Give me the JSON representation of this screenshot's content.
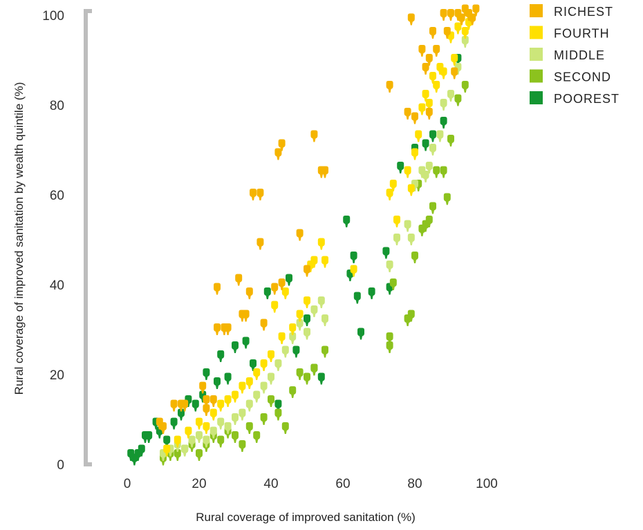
{
  "chart_data": {
    "type": "scatter",
    "title": "",
    "xlabel": "Rural coverage of improved sanitation (%)",
    "ylabel": "Rural coverage of improved sanitation by wealth quintile (%)",
    "xlim": [
      0,
      100
    ],
    "ylim": [
      0,
      100
    ],
    "xticks": [
      "0",
      "20",
      "40",
      "60",
      "80",
      "100"
    ],
    "yticks": [
      "0",
      "20",
      "40",
      "60",
      "80",
      "100"
    ],
    "legend_position": "top-right",
    "grid": false,
    "colors": {
      "richest": "#F5B400",
      "fourth": "#FFE000",
      "middle": "#CCE67A",
      "second": "#8CC21E",
      "poorest": "#149632"
    },
    "series": [
      {
        "name": "RICHEST",
        "key": "richest",
        "x": [
          9,
          10,
          13,
          15,
          16,
          21,
          22,
          22,
          24,
          25,
          25,
          27,
          28,
          31,
          32,
          33,
          34,
          35,
          37,
          37,
          38,
          41,
          42,
          43,
          43,
          48,
          50,
          52,
          54,
          55,
          73,
          78,
          79,
          80,
          82,
          83,
          84,
          84,
          85,
          86,
          88,
          89,
          90,
          91,
          92,
          93,
          94,
          95,
          96,
          97
        ],
        "y": [
          9,
          8,
          13,
          13,
          13,
          17,
          14,
          12,
          14,
          30,
          39,
          30,
          30,
          41,
          33,
          33,
          38,
          60,
          49,
          60,
          31,
          39,
          69,
          40,
          71,
          51,
          43,
          73,
          65,
          65,
          84,
          78,
          99,
          77,
          92,
          88,
          90,
          78,
          96,
          92,
          100,
          96,
          100,
          87,
          100,
          99,
          101,
          100,
          99,
          101
        ]
      },
      {
        "name": "FOURTH",
        "key": "fourth",
        "x": [
          11,
          14,
          17,
          20,
          22,
          24,
          26,
          28,
          30,
          32,
          34,
          36,
          38,
          40,
          41,
          43,
          44,
          46,
          48,
          50,
          51,
          52,
          54,
          55,
          63,
          73,
          74,
          75,
          78,
          79,
          80,
          81,
          82,
          83,
          84,
          85,
          86,
          87,
          88,
          90,
          91,
          92,
          93,
          94,
          95
        ],
        "y": [
          3,
          5,
          7,
          9,
          8,
          11,
          13,
          14,
          15,
          17,
          18,
          20,
          22,
          24,
          35,
          28,
          38,
          30,
          33,
          36,
          44,
          45,
          49,
          45,
          43,
          60,
          62,
          54,
          65,
          61,
          69,
          73,
          79,
          82,
          80,
          86,
          84,
          88,
          87,
          95,
          90,
          97,
          99,
          96,
          98
        ]
      },
      {
        "name": "MIDDLE",
        "key": "middle",
        "x": [
          10,
          12,
          14,
          16,
          18,
          20,
          22,
          24,
          26,
          28,
          30,
          32,
          34,
          36,
          38,
          40,
          42,
          44,
          46,
          48,
          50,
          52,
          54,
          55,
          73,
          75,
          78,
          79,
          80,
          82,
          83,
          84,
          85,
          87,
          88,
          90,
          92,
          94
        ],
        "y": [
          2,
          3,
          4,
          3,
          5,
          6,
          5,
          7,
          9,
          8,
          10,
          11,
          13,
          15,
          17,
          19,
          22,
          25,
          28,
          31,
          29,
          34,
          36,
          32,
          44,
          50,
          53,
          50,
          62,
          65,
          64,
          66,
          70,
          73,
          80,
          82,
          88,
          94
        ]
      },
      {
        "name": "SECOND",
        "key": "second",
        "x": [
          10,
          12,
          14,
          16,
          18,
          20,
          22,
          24,
          26,
          28,
          30,
          32,
          34,
          36,
          38,
          40,
          42,
          44,
          46,
          48,
          50,
          52,
          55,
          73,
          73,
          74,
          78,
          79,
          80,
          81,
          82,
          83,
          84,
          85,
          86,
          88,
          89,
          90,
          92,
          94
        ],
        "y": [
          1,
          2,
          2,
          3,
          4,
          2,
          4,
          6,
          5,
          7,
          6,
          4,
          8,
          6,
          10,
          14,
          11,
          8,
          16,
          20,
          19,
          21,
          25,
          26,
          28,
          40,
          32,
          33,
          46,
          62,
          52,
          53,
          54,
          57,
          65,
          65,
          59,
          72,
          81,
          84
        ]
      },
      {
        "name": "POOREST",
        "key": "poorest",
        "x": [
          1,
          2,
          3,
          4,
          5,
          6,
          8,
          9,
          11,
          13,
          15,
          17,
          19,
          21,
          22,
          25,
          26,
          28,
          30,
          33,
          35,
          39,
          42,
          45,
          47,
          50,
          52,
          54,
          61,
          62,
          63,
          64,
          65,
          68,
          72,
          73,
          76,
          80,
          83,
          85,
          88,
          92
        ],
        "y": [
          2,
          1,
          2,
          3,
          6,
          6,
          9,
          7,
          5,
          9,
          11,
          14,
          13,
          15,
          20,
          18,
          24,
          19,
          26,
          27,
          22,
          38,
          13,
          41,
          25,
          32,
          21,
          19,
          54,
          42,
          46,
          37,
          29,
          38,
          47,
          39,
          66,
          70,
          71,
          73,
          76,
          90
        ]
      }
    ]
  }
}
